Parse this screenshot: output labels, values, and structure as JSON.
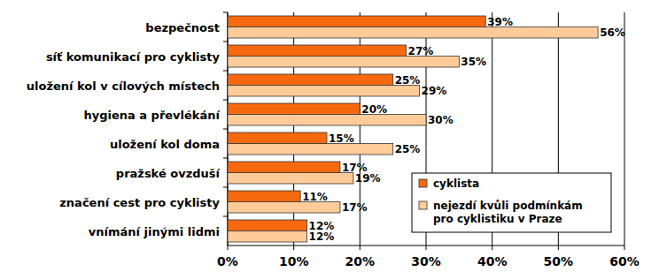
{
  "chart_data": {
    "type": "bar",
    "orientation": "horizontal",
    "categories": [
      "bezpečnost",
      "síť komunikací pro cyklisty",
      "uložení kol v cílových místech",
      "hygiena a převlékání",
      "uložení kol doma",
      "pražské ovzduší",
      "značení cest pro cyklisty",
      "vnímání jinými lidmi"
    ],
    "series": [
      {
        "name": "cyklista",
        "color": "#f7690f",
        "values": [
          39,
          27,
          25,
          20,
          15,
          17,
          11,
          12
        ],
        "value_labels": [
          "39%",
          "27%",
          "25%",
          "20%",
          "15%",
          "17%",
          "11%",
          "12%"
        ]
      },
      {
        "name": "nejezdí kvůli podmínkám pro cyklistiku v Praze",
        "color": "#ffcc99",
        "values": [
          56,
          35,
          29,
          30,
          25,
          19,
          17,
          12
        ],
        "value_labels": [
          "56%",
          "35%",
          "29%",
          "30%",
          "25%",
          "19%",
          "17%",
          "12%"
        ]
      }
    ],
    "xlim": [
      0,
      60
    ],
    "xticks": [
      {
        "value": 0,
        "label": "0%"
      },
      {
        "value": 10,
        "label": "10%"
      },
      {
        "value": 20,
        "label": "20%"
      },
      {
        "value": 30,
        "label": "30%"
      },
      {
        "value": 40,
        "label": "40%"
      },
      {
        "value": 50,
        "label": "50%"
      },
      {
        "value": 60,
        "label": "60%"
      }
    ],
    "grid": true,
    "data_labels": true,
    "legend": "lower right"
  }
}
